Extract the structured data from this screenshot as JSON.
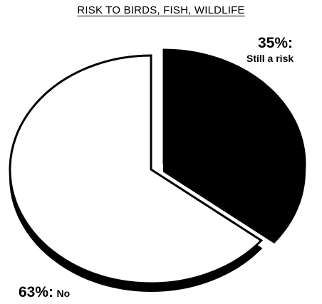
{
  "chart_data": {
    "type": "pie",
    "title": "RISK TO BIRDS, FISH, WILDLIFE",
    "slices": [
      {
        "pct_label": "35%:",
        "text_label": "Still a risk",
        "value": 35,
        "color": "#000000",
        "exploded": true
      },
      {
        "pct_label": "63%:",
        "text_label": "No",
        "value": 63,
        "color": "#ffffff",
        "exploded": false
      }
    ],
    "legend": "none",
    "style": "3d-exploded"
  }
}
